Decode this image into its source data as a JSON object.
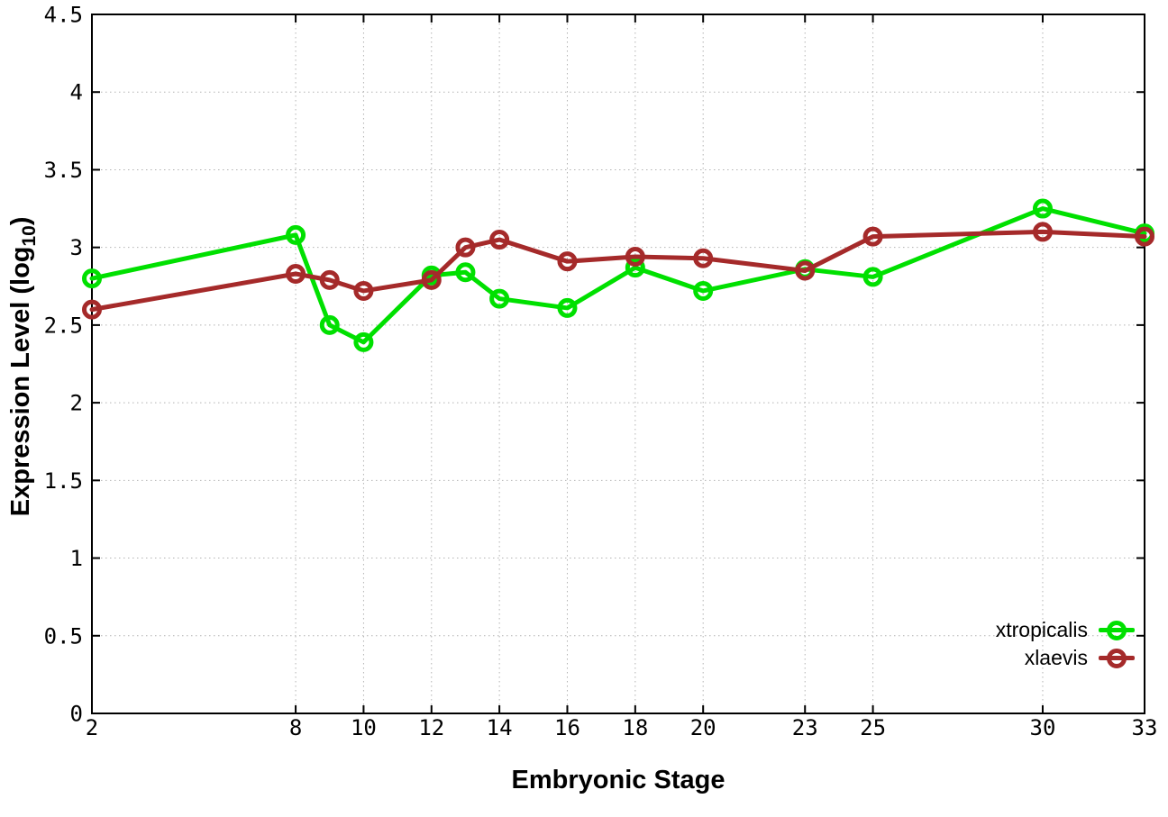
{
  "figure": {
    "background": "#ffffff",
    "frame_color": "#000000",
    "grid_color": "#b3b3b3"
  },
  "chart_data": {
    "type": "line",
    "title": "",
    "xlabel": "Embryonic Stage",
    "ylabel": {
      "main": "Expression Level (log",
      "sub": "10",
      "suffix": ")"
    },
    "xlim": [
      2,
      33
    ],
    "ylim": [
      0,
      4.5
    ],
    "grid": true,
    "legend_position": "bottom-right",
    "x": [
      2,
      8,
      9,
      10,
      12,
      13,
      14,
      16,
      18,
      20,
      23,
      25,
      30,
      33
    ],
    "x_tick_labels": [
      "2",
      "8",
      "10",
      "12",
      "14",
      "16",
      "18",
      "20",
      "23",
      "25",
      "30",
      "33"
    ],
    "y_tick_labels": [
      "0",
      "0.5",
      "1",
      "1.5",
      "2",
      "2.5",
      "3",
      "3.5",
      "4",
      "4.5"
    ],
    "series": [
      {
        "name": "xtropicalis",
        "color": "#00e000",
        "values": [
          2.8,
          3.08,
          2.5,
          2.39,
          2.82,
          2.84,
          2.67,
          2.61,
          2.87,
          2.72,
          2.86,
          2.81,
          3.25,
          3.09
        ]
      },
      {
        "name": "xlaevis",
        "color": "#a52a2a",
        "values": [
          2.6,
          2.83,
          2.79,
          2.72,
          2.79,
          3.0,
          3.05,
          2.91,
          2.94,
          2.93,
          2.85,
          3.07,
          3.1,
          3.07
        ]
      }
    ]
  }
}
